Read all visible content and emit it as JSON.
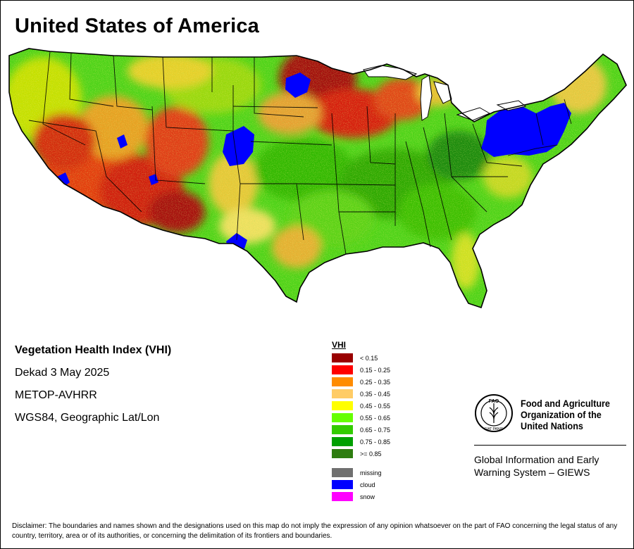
{
  "title": "United States of America",
  "info": {
    "product": "Vegetation Health Index (VHI)",
    "period": "Dekad 3 May 2025",
    "sensor": "METOP-AVHRR",
    "projection": "WGS84, Geographic Lat/Lon"
  },
  "legend": {
    "title": "VHI",
    "classes": [
      {
        "label": "< 0.15",
        "color": "#990000"
      },
      {
        "label": "0.15 - 0.25",
        "color": "#ff0000"
      },
      {
        "label": "0.25 - 0.35",
        "color": "#ff8c00"
      },
      {
        "label": "0.35 - 0.45",
        "color": "#ffcc66"
      },
      {
        "label": "0.45 - 0.55",
        "color": "#ffff00"
      },
      {
        "label": "0.55 - 0.65",
        "color": "#66ff00"
      },
      {
        "label": "0.65 - 0.75",
        "color": "#33cc00"
      },
      {
        "label": "0.75 - 0.85",
        "color": "#00a000"
      },
      {
        "label": ">= 0.85",
        "color": "#2e7d10"
      }
    ],
    "special": [
      {
        "label": "missing",
        "color": "#707070"
      },
      {
        "label": "cloud",
        "color": "#0000ff"
      },
      {
        "label": "snow",
        "color": "#ff00ff"
      }
    ]
  },
  "logo": {
    "org_name": "Food and Agriculture Organization of the United Nations",
    "emblem_motto": "FIAT PANIS",
    "emblem_text": "FAO",
    "system_name": "Global Information and Early Warning System – GIEWS",
    "emblem_icon": "fao-emblem-icon"
  },
  "disclaimer": "Disclaimer: The boundaries and names shown and the designations used on this map do not imply the expression of any opinion whatsoever on the part of FAO concerning the legal status of any country, territory, area or of its authorities, or concerning the delimitation of its frontiers and boundaries."
}
